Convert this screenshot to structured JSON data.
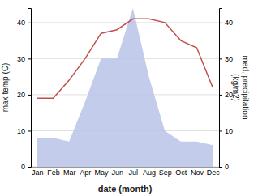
{
  "chart_data": {
    "type": "line",
    "categories": [
      "Jan",
      "Feb",
      "Mar",
      "Apr",
      "May",
      "Jun",
      "Jul",
      "Aug",
      "Sep",
      "Oct",
      "Nov",
      "Dec"
    ],
    "xlabel": "date (month)",
    "ylabel": "max temp (C)",
    "y2label": "med. precipitation\n(kg/m2)",
    "series": [
      {
        "type": "area",
        "axis": "y2",
        "color": "#b8c4e8",
        "values": [
          8,
          8,
          7,
          18,
          30,
          30,
          44,
          25,
          10,
          7,
          7,
          6
        ]
      },
      {
        "type": "line",
        "color": "#c0504d",
        "values": [
          19,
          19,
          24,
          30,
          37,
          38,
          41,
          41,
          40,
          35,
          33,
          22
        ]
      }
    ],
    "ylim": [
      0,
      44
    ],
    "yticks": [
      0,
      10,
      20,
      30,
      40
    ],
    "y2lim": [
      0,
      44
    ],
    "y2ticks": [
      0,
      10,
      20,
      30,
      40
    ],
    "grid": true
  }
}
